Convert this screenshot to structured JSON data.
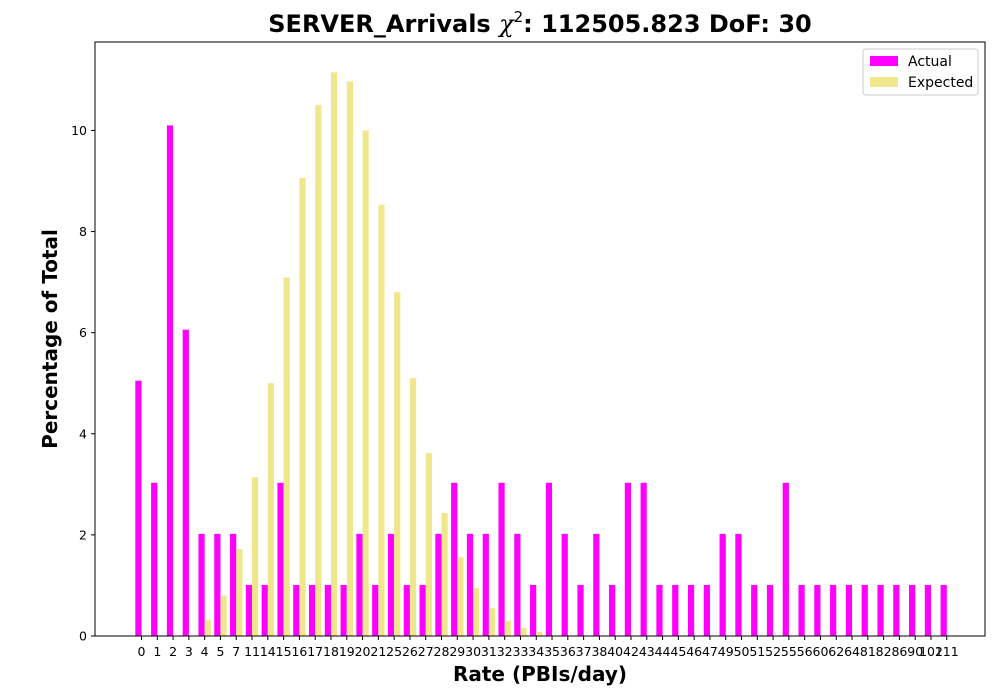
{
  "chart_data": {
    "type": "bar",
    "title": "SERVER_Arrivals χ²: 112505.823 DoF: 30",
    "title_prefix": "SERVER_Arrivals ",
    "title_chi": "χ",
    "title_sup": "2",
    "title_suffix": ": 112505.823 DoF: 30",
    "xlabel": "Rate (PBIs/day)",
    "ylabel": "Percentage of Total",
    "ylim": [
      0,
      11.75
    ],
    "yticks": [
      0,
      2,
      4,
      6,
      8,
      10
    ],
    "legend_position": "top-right",
    "categories": [
      "0",
      "1",
      "2",
      "3",
      "4",
      "5",
      "7",
      "11",
      "14",
      "15",
      "16",
      "17",
      "18",
      "19",
      "20",
      "21",
      "25",
      "26",
      "27",
      "28",
      "29",
      "30",
      "31",
      "32",
      "33",
      "34",
      "35",
      "36",
      "37",
      "38",
      "40",
      "42",
      "43",
      "44",
      "45",
      "46",
      "47",
      "49",
      "50",
      "51",
      "52",
      "55",
      "56",
      "60",
      "62",
      "64",
      "81",
      "82",
      "86",
      "90",
      "102",
      "111"
    ],
    "series": [
      {
        "name": "Actual",
        "color": "#ff00ff",
        "values": [
          5.05,
          3.03,
          10.1,
          6.06,
          2.02,
          2.02,
          2.02,
          1.01,
          1.01,
          3.03,
          1.01,
          1.01,
          1.01,
          1.01,
          2.02,
          1.01,
          2.02,
          1.01,
          1.01,
          2.02,
          3.03,
          2.02,
          2.02,
          3.03,
          2.02,
          1.01,
          3.03,
          2.02,
          1.01,
          2.02,
          1.01,
          3.03,
          3.03,
          1.01,
          1.01,
          1.01,
          1.01,
          2.02,
          2.02,
          1.01,
          1.01,
          3.03,
          1.01,
          1.01,
          1.01,
          1.01,
          1.01,
          1.01,
          1.01,
          1.01,
          1.01,
          1.01
        ]
      },
      {
        "name": "Expected",
        "color": "#f0e68c",
        "values": [
          0,
          0,
          0,
          0,
          0.32,
          0.8,
          1.72,
          3.14,
          5.0,
          7.09,
          9.06,
          10.5,
          11.15,
          10.97,
          10.0,
          8.53,
          6.8,
          5.1,
          3.62,
          2.43,
          1.56,
          0.95,
          0.55,
          0.3,
          0.16,
          0.08,
          0,
          0,
          0,
          0,
          0,
          0,
          0,
          0,
          0,
          0,
          0,
          0,
          0,
          0,
          0,
          0,
          0,
          0,
          0,
          0,
          0,
          0,
          0,
          0,
          0,
          0
        ]
      }
    ]
  }
}
